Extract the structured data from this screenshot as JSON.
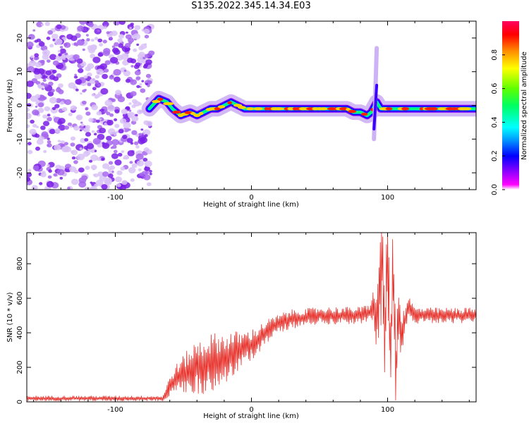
{
  "title": "S135.2022.345.14.34.E03",
  "colors": {
    "snr_line": "#e8302a",
    "dots": "#7b1fe0",
    "axis": "#000000",
    "colormap": [
      "#ffffff",
      "#ff00ff",
      "#7a00ff",
      "#0000ff",
      "#00a0ff",
      "#00ffff",
      "#00ff60",
      "#60ff00",
      "#ffff00",
      "#ff9000",
      "#ff0000",
      "#ff0060"
    ]
  },
  "chart_data": [
    {
      "type": "heatmap",
      "xlabel": "Height of straight line (km)",
      "ylabel": "Frequency (Hz)",
      "xlim": [
        -165,
        165
      ],
      "ylim": [
        -25,
        25
      ],
      "xticks": [
        -100,
        0,
        100
      ],
      "yticks": [
        -20,
        -10,
        0,
        10,
        20
      ],
      "noise_region_x": [
        -165,
        -73
      ],
      "ridge": {
        "x": [
          -75,
          -68,
          -62,
          -58,
          -52,
          -45,
          -40,
          -35,
          -30,
          -25,
          -20,
          -15,
          -10,
          -5,
          0,
          10,
          20,
          30,
          40,
          50,
          60,
          65,
          70,
          75,
          80,
          85,
          88,
          92,
          95,
          100,
          105,
          110,
          120,
          130,
          140,
          150,
          160,
          165
        ],
        "freq": [
          -1,
          2,
          1,
          -1,
          -3,
          -2,
          -3,
          -2,
          -1,
          -1,
          0,
          1,
          0,
          -1,
          -1,
          -1,
          -1,
          -1,
          -1,
          -1,
          -1,
          -1,
          -1,
          -2,
          -2,
          -3,
          -2,
          1,
          -1,
          -1,
          -1,
          -1,
          -1,
          -1,
          -1,
          -1,
          -1,
          -1
        ]
      },
      "colorbar": {
        "label": "Normalized spectral amplitude",
        "range": [
          0,
          1
        ],
        "ticks": [
          "0.0",
          "0.2",
          "0.4",
          "0.6",
          "0.8"
        ]
      }
    },
    {
      "type": "line",
      "xlabel": "Height of straight line (km)",
      "ylabel": "SNR (10 * v/v)",
      "xlim": [
        -165,
        165
      ],
      "ylim": [
        0,
        980
      ],
      "xticks": [
        -100,
        0,
        100
      ],
      "yticks": [
        0,
        200,
        400,
        600,
        800
      ],
      "series": [
        {
          "x": [
            -165,
            -140,
            -120,
            -100,
            -80,
            -65,
            -60,
            -55,
            -50,
            -45,
            -40,
            -35,
            -30,
            -25,
            -20,
            -15,
            -10,
            -5,
            0,
            5,
            10,
            15,
            20,
            25,
            30,
            40,
            50,
            60,
            70,
            80,
            85,
            88,
            90,
            92,
            94,
            95,
            96,
            97,
            98,
            100,
            102,
            104,
            106,
            108,
            110,
            115,
            120,
            130,
            140,
            150,
            160,
            165
          ],
          "y": [
            20,
            20,
            20,
            20,
            20,
            20,
            90,
            140,
            160,
            180,
            200,
            210,
            230,
            240,
            250,
            270,
            290,
            310,
            330,
            360,
            400,
            430,
            450,
            470,
            480,
            490,
            500,
            500,
            500,
            500,
            510,
            520,
            560,
            480,
            620,
            700,
            900,
            650,
            300,
            960,
            150,
            860,
            120,
            560,
            380,
            560,
            500,
            500,
            500,
            500,
            500,
            500
          ],
          "spread": [
            15,
            15,
            15,
            15,
            15,
            15,
            60,
            80,
            110,
            140,
            160,
            170,
            170,
            160,
            150,
            140,
            120,
            100,
            90,
            80,
            70,
            60,
            55,
            55,
            55,
            50,
            50,
            50,
            50,
            50,
            55,
            60,
            120,
            200,
            250,
            280,
            250,
            300,
            300,
            300,
            300,
            280,
            250,
            200,
            120,
            60,
            50,
            45,
            45,
            45,
            45,
            45
          ]
        }
      ]
    }
  ]
}
